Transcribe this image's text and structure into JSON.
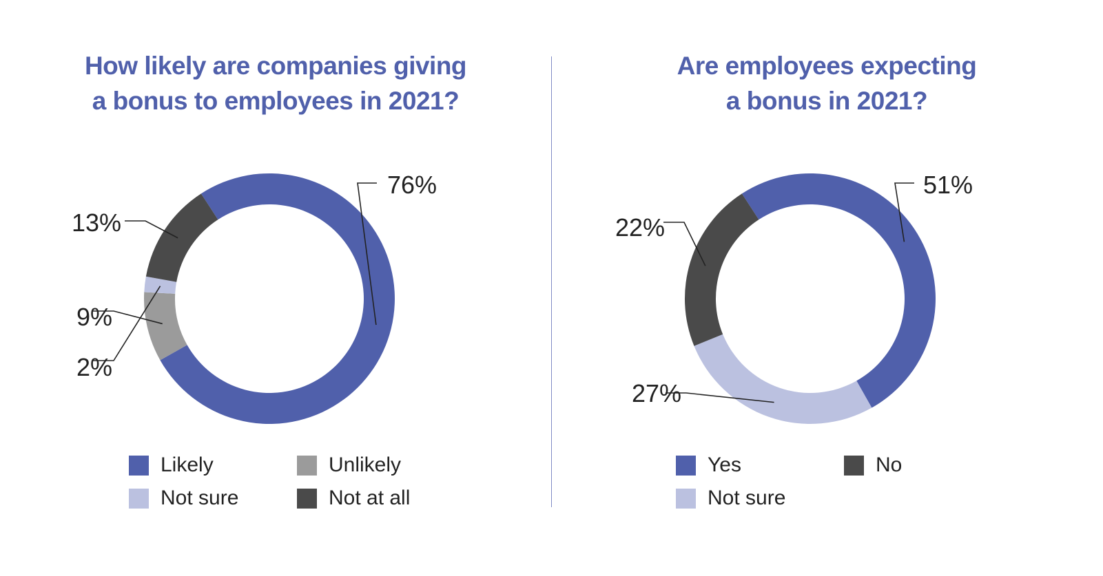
{
  "chart_data": [
    {
      "type": "pie",
      "title": "How likely are companies giving a bonus to employees in 2021?",
      "title_lines": [
        "How likely are companies giving",
        "a bonus to employees in 2021?"
      ],
      "categories": [
        "Likely",
        "Unlikely",
        "Not sure",
        "Not at all"
      ],
      "values": [
        76,
        9,
        2,
        13
      ],
      "data_labels": [
        "76%",
        "9%",
        "2%",
        "13%"
      ],
      "colors": [
        "#5060ab",
        "#9b9b9b",
        "#bbc1e0",
        "#4a4a4a"
      ],
      "legend_rows": [
        [
          "Likely",
          "Unlikely"
        ],
        [
          "Not sure",
          "Not at all"
        ]
      ],
      "legend_position": "bottom",
      "grid": false
    },
    {
      "type": "pie",
      "title": "Are employees expecting a bonus in 2021?",
      "title_lines": [
        "Are employees expecting",
        "a bonus in 2021?"
      ],
      "categories": [
        "Yes",
        "No",
        "Not sure"
      ],
      "values": [
        51,
        22,
        27
      ],
      "data_labels": [
        "51%",
        "22%",
        "27%"
      ],
      "colors": [
        "#5060ab",
        "#4a4a4a",
        "#bbc1e0"
      ],
      "legend_rows": [
        [
          "Yes",
          "No"
        ],
        [
          "Not sure"
        ]
      ],
      "legend_position": "bottom",
      "grid": false
    }
  ]
}
